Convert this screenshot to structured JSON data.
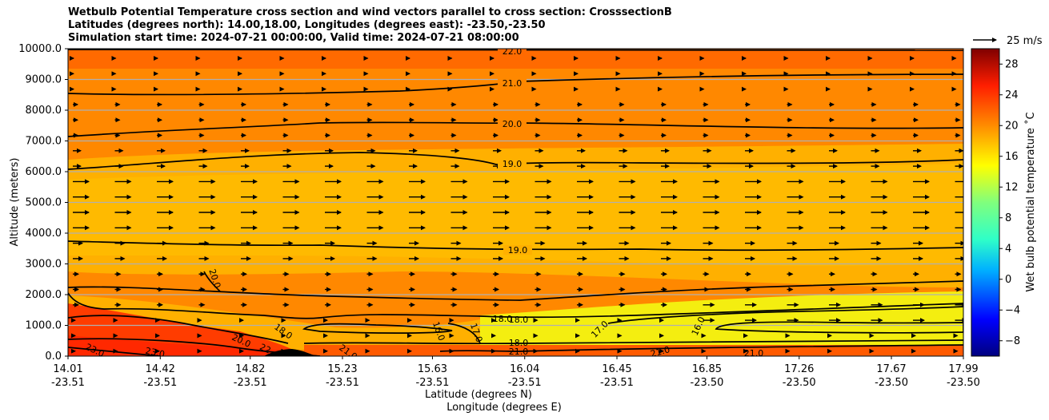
{
  "chart_data": {
    "type": "contour-cross-section",
    "title_lines": [
      "Wetbulb Potential Temperature cross section and wind vectors parallel to cross section: CrosssectionB",
      "Latitudes (degrees north): 14.00,18.00, Longitudes (degrees east): -23.50,-23.50",
      "Simulation start time: 2024-07-21 00:00:00, Valid time: 2024-07-21 08:00:00"
    ],
    "xlabel_lat": "Latitude (degrees N)",
    "xlabel_lon": "Longitude (degrees E)",
    "ylabel": "Altitude (meters)",
    "ylim": [
      0,
      10000
    ],
    "yticks": [
      "0.0",
      "1000.0",
      "2000.0",
      "3000.0",
      "4000.0",
      "5000.0",
      "6000.0",
      "7000.0",
      "8000.0",
      "9000.0",
      "10000.0"
    ],
    "xticks_lat": [
      "14.01",
      "14.42",
      "14.82",
      "15.23",
      "15.63",
      "16.04",
      "16.45",
      "16.85",
      "17.26",
      "17.67",
      "17.99"
    ],
    "xticks_lon": [
      "-23.51",
      "-23.51",
      "-23.51",
      "-23.51",
      "-23.51",
      "-23.51",
      "-23.51",
      "-23.50",
      "-23.50",
      "-23.50",
      "-23.50"
    ],
    "colorbar": {
      "label": "Wet bulb potential temperature ˚C",
      "range": [
        -10,
        30
      ],
      "ticks": [
        "28",
        "24",
        "20",
        "16",
        "12",
        "8",
        "4",
        "0",
        "−4",
        "−8"
      ]
    },
    "quiver_key": "25 m/s",
    "contour_labels": [
      "22.0",
      "21.0",
      "20.0",
      "19.0",
      "19.0",
      "20.0",
      "18.0",
      "18.0",
      "18.0",
      "18.0",
      "16.0",
      "17.0",
      "17.0",
      "16.0",
      "21.0",
      "21.0",
      "21.0",
      "21.0",
      "20.0",
      "22",
      "23.0",
      "23.0",
      "18.0"
    ],
    "grid": true
  }
}
